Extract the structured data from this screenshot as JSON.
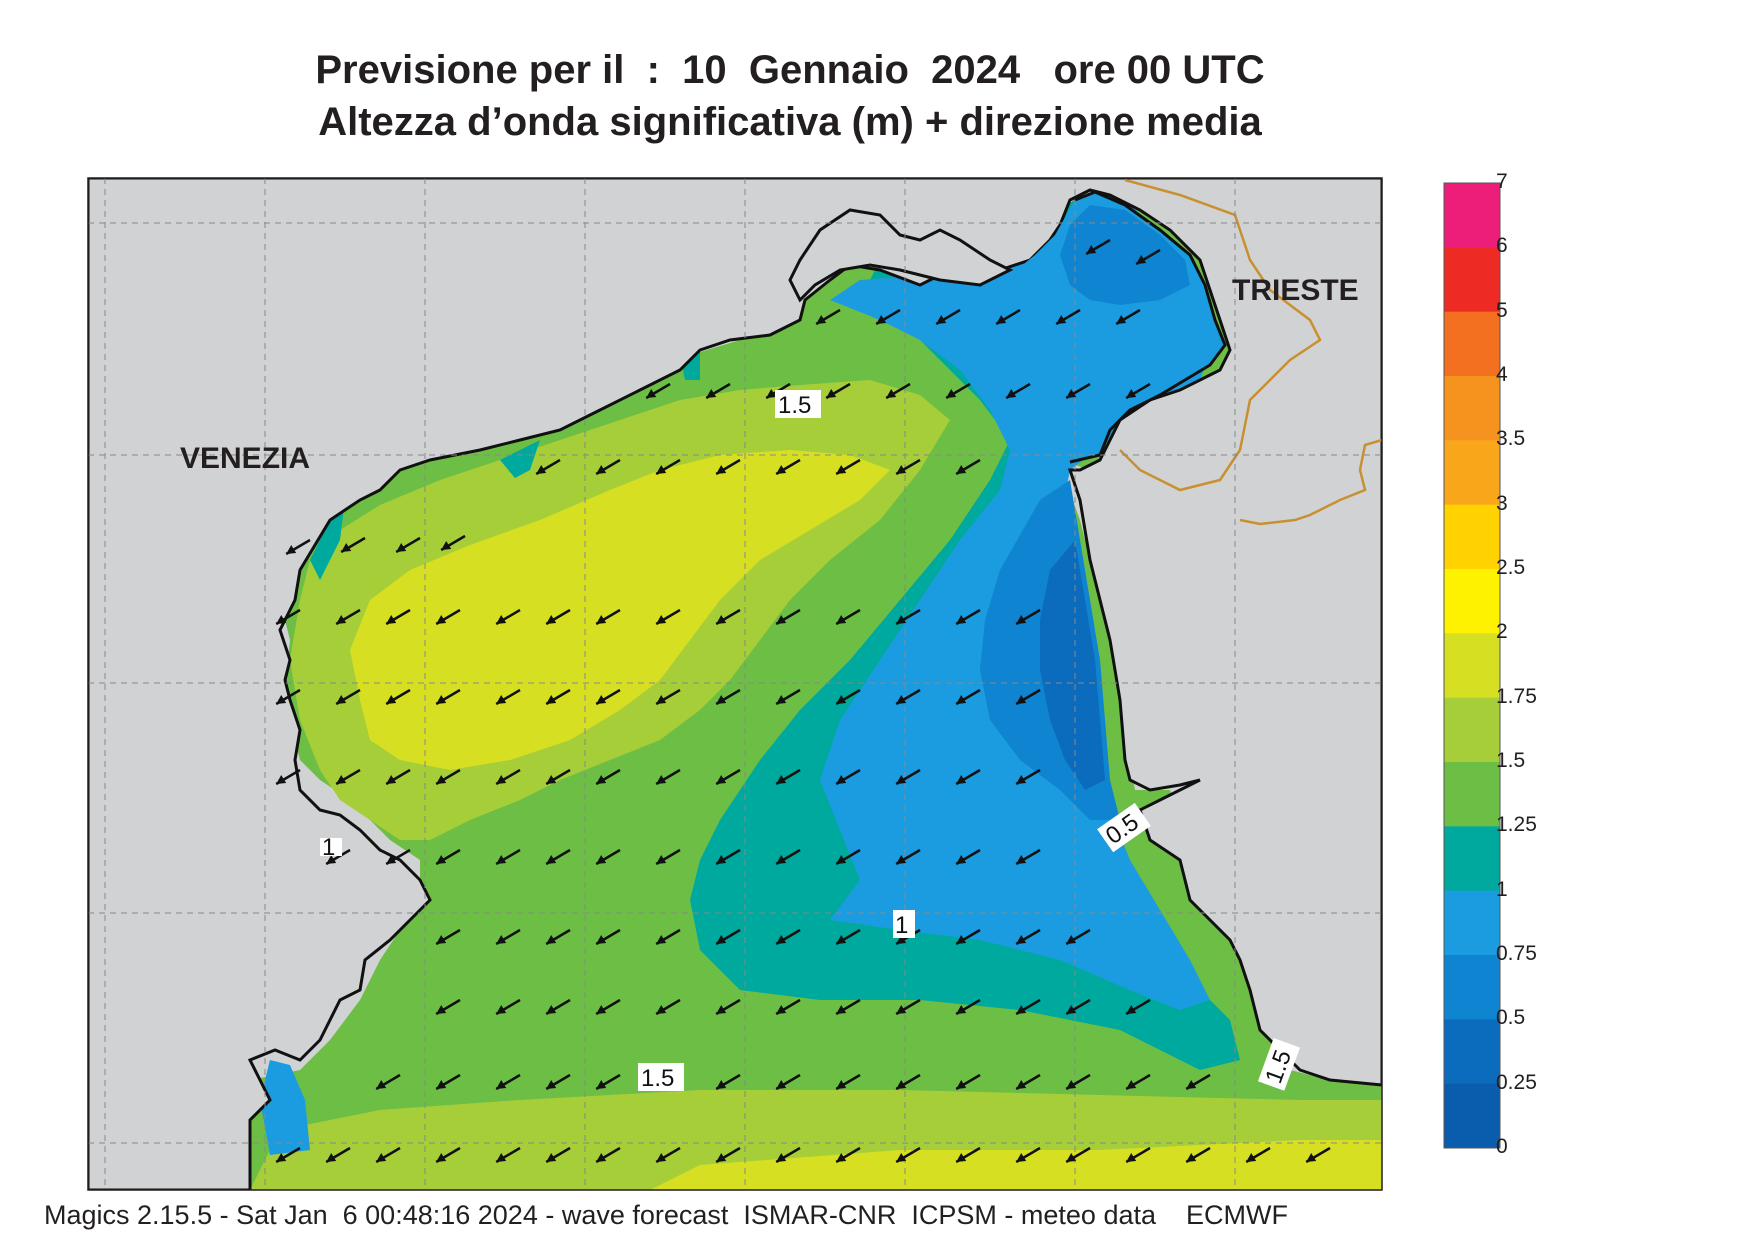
{
  "header": {
    "title_line1": "Previsione per il  :  10  Gennaio  2024   ore 00 UTC",
    "title_line2": "Altezza d’onda significativa (m) + direzione media"
  },
  "map": {
    "cities": [
      "VENEZIA",
      "TRIESTE"
    ],
    "contour_labels": [
      "1.5",
      "1.5",
      "1",
      "0.5",
      "1.5",
      "1"
    ],
    "arrow_direction": "south-west",
    "land_color": "#d1d2d4",
    "border_color": "#c89030"
  },
  "legend": {
    "levels": [
      "7",
      "6",
      "5",
      "4",
      "3.5",
      "3",
      "2.5",
      "2",
      "1.75",
      "1.5",
      "1.25",
      "1",
      "0.75",
      "0.5",
      "0.25",
      "0"
    ],
    "colors": [
      "#ed1e79",
      "#ee2a24",
      "#f37021",
      "#f6921e",
      "#faa61a",
      "#ffd200",
      "#fff200",
      "#d7df23",
      "#a6ce39",
      "#6dbe45",
      "#00a99d",
      "#1b9ce0",
      "#0f84d0",
      "#0b6cbd",
      "#0a5cad"
    ]
  },
  "footer": {
    "text": "Magics 2.15.5 - Sat Jan  6 00:48:16 2024 - wave forecast  ISMAR-CNR  ICPSM - meteo data    ECMWF"
  }
}
